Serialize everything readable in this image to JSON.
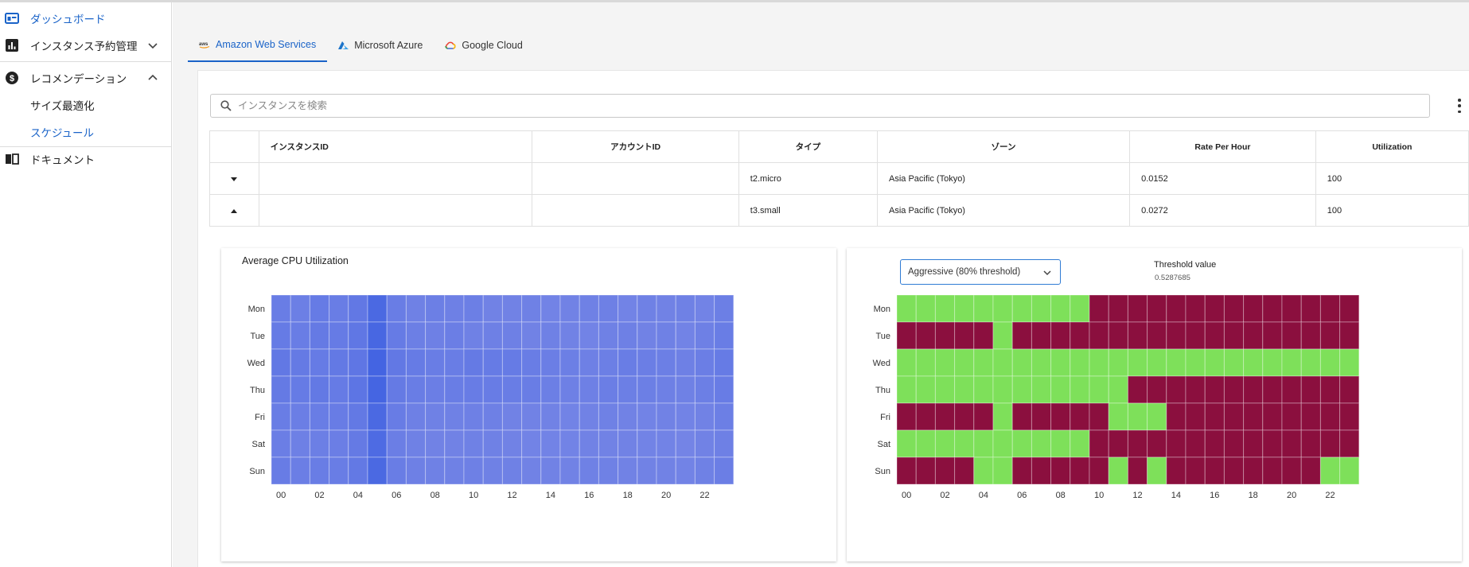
{
  "sidebar": {
    "items": [
      {
        "label": "ダッシュボード",
        "icon": "dashboard-icon"
      },
      {
        "label": "インスタンス予約管理",
        "icon": "bar-chart-icon"
      },
      {
        "label": "レコメンデーション",
        "icon": "dollar-icon"
      },
      {
        "label": "ドキュメント",
        "icon": "book-icon"
      }
    ],
    "sub_items": [
      {
        "label": "サイズ最適化"
      },
      {
        "label": "スケジュール"
      }
    ]
  },
  "tabs": [
    {
      "label": "Amazon Web Services",
      "icon": "aws-icon",
      "active": true
    },
    {
      "label": "Microsoft Azure",
      "icon": "azure-icon"
    },
    {
      "label": "Google Cloud",
      "icon": "google-cloud-icon"
    }
  ],
  "search": {
    "placeholder": "インスタンスを検索"
  },
  "table": {
    "columns": [
      "インスタンスID",
      "アカウントID",
      "タイプ",
      "ゾーン",
      "Rate Per Hour",
      "Utilization"
    ],
    "rows": [
      {
        "instance_id": "",
        "account_id": "",
        "type": "t2.micro",
        "zone": "Asia Pacific (Tokyo)",
        "rate": "0.0152",
        "utilization": "100",
        "expanded": false
      },
      {
        "instance_id": "",
        "account_id": "",
        "type": "t3.small",
        "zone": "Asia Pacific (Tokyo)",
        "rate": "0.0272",
        "utilization": "100",
        "expanded": true
      }
    ]
  },
  "cpu_panel": {
    "title": "Average CPU Utilization"
  },
  "schedule_panel": {
    "select_value": "Aggressive (80% threshold)",
    "threshold_label": "Threshold value",
    "threshold_value": "0.5287685"
  },
  "colors": {
    "accent": "#1a63c8",
    "heat_base": "#6679e0",
    "on": "#7ee05a",
    "off": "#8b0f3e"
  },
  "chart_data": [
    {
      "type": "heatmap",
      "title": "Average CPU Utilization",
      "y": [
        "Mon",
        "Tue",
        "Wed",
        "Thu",
        "Fri",
        "Sat",
        "Sun"
      ],
      "x": [
        "00",
        "01",
        "02",
        "03",
        "04",
        "05",
        "06",
        "07",
        "08",
        "09",
        "10",
        "11",
        "12",
        "13",
        "14",
        "15",
        "16",
        "17",
        "18",
        "19",
        "20",
        "21",
        "22",
        "23"
      ],
      "x_tick_labels": [
        "00",
        "02",
        "04",
        "06",
        "08",
        "10",
        "12",
        "14",
        "16",
        "18",
        "20",
        "22"
      ],
      "values": [
        [
          0.5,
          0.48,
          0.52,
          0.5,
          0.55,
          0.7,
          0.5,
          0.46,
          0.48,
          0.47,
          0.48,
          0.45,
          0.45,
          0.46,
          0.44,
          0.45,
          0.46,
          0.47,
          0.44,
          0.46,
          0.45,
          0.46,
          0.44,
          0.48
        ],
        [
          0.52,
          0.5,
          0.53,
          0.52,
          0.56,
          0.72,
          0.52,
          0.48,
          0.47,
          0.49,
          0.46,
          0.47,
          0.47,
          0.45,
          0.46,
          0.45,
          0.44,
          0.46,
          0.47,
          0.45,
          0.46,
          0.44,
          0.47,
          0.5
        ],
        [
          0.55,
          0.53,
          0.52,
          0.54,
          0.57,
          0.75,
          0.55,
          0.52,
          0.5,
          0.5,
          0.53,
          0.52,
          0.52,
          0.5,
          0.49,
          0.48,
          0.47,
          0.48,
          0.5,
          0.49,
          0.48,
          0.47,
          0.49,
          0.52
        ],
        [
          0.53,
          0.52,
          0.54,
          0.52,
          0.58,
          0.74,
          0.53,
          0.5,
          0.49,
          0.5,
          0.51,
          0.51,
          0.5,
          0.5,
          0.48,
          0.47,
          0.47,
          0.49,
          0.48,
          0.48,
          0.47,
          0.46,
          0.48,
          0.51
        ],
        [
          0.5,
          0.49,
          0.5,
          0.51,
          0.54,
          0.7,
          0.51,
          0.47,
          0.46,
          0.46,
          0.47,
          0.47,
          0.45,
          0.45,
          0.45,
          0.44,
          0.45,
          0.46,
          0.45,
          0.44,
          0.45,
          0.44,
          0.45,
          0.48
        ],
        [
          0.49,
          0.47,
          0.48,
          0.49,
          0.53,
          0.68,
          0.49,
          0.46,
          0.45,
          0.45,
          0.46,
          0.46,
          0.45,
          0.44,
          0.44,
          0.44,
          0.45,
          0.45,
          0.45,
          0.44,
          0.44,
          0.43,
          0.45,
          0.47
        ],
        [
          0.51,
          0.49,
          0.5,
          0.5,
          0.54,
          0.7,
          0.5,
          0.47,
          0.46,
          0.46,
          0.47,
          0.46,
          0.46,
          0.45,
          0.45,
          0.45,
          0.46,
          0.46,
          0.45,
          0.45,
          0.45,
          0.44,
          0.46,
          0.49
        ]
      ]
    },
    {
      "type": "heatmap",
      "y": [
        "Mon",
        "Tue",
        "Wed",
        "Thu",
        "Fri",
        "Sat",
        "Sun"
      ],
      "x": [
        "00",
        "01",
        "02",
        "03",
        "04",
        "05",
        "06",
        "07",
        "08",
        "09",
        "10",
        "11",
        "12",
        "13",
        "14",
        "15",
        "16",
        "17",
        "18",
        "19",
        "20",
        "21",
        "22",
        "23"
      ],
      "x_tick_labels": [
        "00",
        "02",
        "04",
        "06",
        "08",
        "10",
        "12",
        "14",
        "16",
        "18",
        "20",
        "22"
      ],
      "values": [
        [
          1,
          1,
          1,
          1,
          1,
          1,
          1,
          1,
          1,
          1,
          0,
          0,
          0,
          0,
          0,
          0,
          0,
          0,
          0,
          0,
          0,
          0,
          0,
          0
        ],
        [
          0,
          0,
          0,
          0,
          0,
          1,
          0,
          0,
          0,
          0,
          0,
          0,
          0,
          0,
          0,
          0,
          0,
          0,
          0,
          0,
          0,
          0,
          0,
          0
        ],
        [
          1,
          1,
          1,
          1,
          1,
          1,
          1,
          1,
          1,
          1,
          1,
          1,
          1,
          1,
          1,
          1,
          1,
          1,
          1,
          1,
          1,
          1,
          1,
          1
        ],
        [
          1,
          1,
          1,
          1,
          1,
          1,
          1,
          1,
          1,
          1,
          1,
          1,
          0,
          0,
          0,
          0,
          0,
          0,
          0,
          0,
          0,
          0,
          0,
          0
        ],
        [
          0,
          0,
          0,
          0,
          0,
          1,
          0,
          0,
          0,
          0,
          0,
          1,
          1,
          1,
          0,
          0,
          0,
          0,
          0,
          0,
          0,
          0,
          0,
          0
        ],
        [
          1,
          1,
          1,
          1,
          1,
          1,
          1,
          1,
          1,
          1,
          0,
          0,
          0,
          0,
          0,
          0,
          0,
          0,
          0,
          0,
          0,
          0,
          0,
          0
        ],
        [
          0,
          0,
          0,
          0,
          1,
          1,
          0,
          0,
          0,
          0,
          0,
          1,
          0,
          1,
          0,
          0,
          0,
          0,
          0,
          0,
          0,
          0,
          1,
          1
        ]
      ]
    }
  ]
}
